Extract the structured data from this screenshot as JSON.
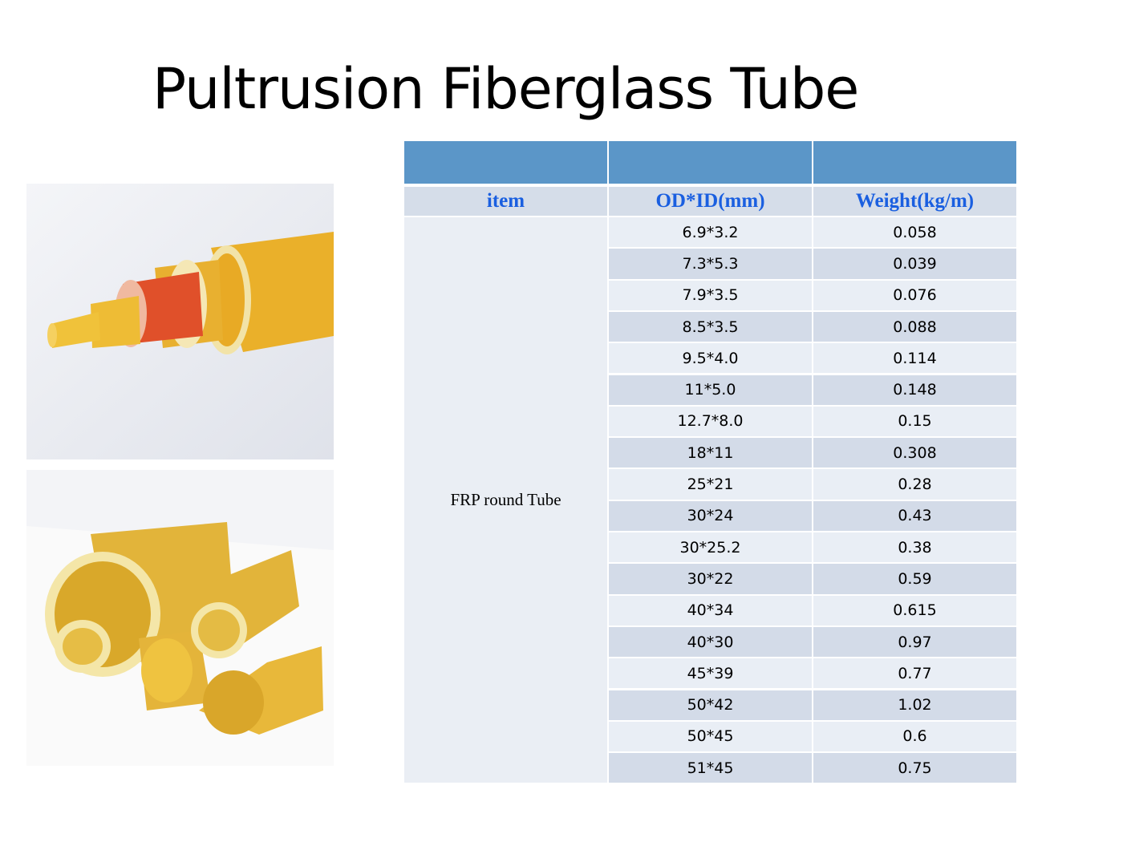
{
  "header": {
    "title": "Pultrusion Fiberglass Tube"
  },
  "table": {
    "columns": [
      "item",
      "OD*ID(mm)",
      "Weight(kg/m)"
    ],
    "item": "FRP round Tube",
    "rows": [
      [
        "6.9*3.2",
        "0.058"
      ],
      [
        "7.3*5.3",
        "0.039"
      ],
      [
        "7.9*3.5",
        "0.076"
      ],
      [
        "8.5*3.5",
        "0.088"
      ],
      [
        "9.5*4.0",
        "0.114"
      ],
      [
        "11*5.0",
        "0.148"
      ],
      [
        "12.7*8.0",
        "0.15"
      ],
      [
        "18*11",
        "0.308"
      ],
      [
        "25*21",
        "0.28"
      ],
      [
        "30*24",
        "0.43"
      ],
      [
        "30*25.2",
        "0.38"
      ],
      [
        "30*22",
        "0.59"
      ],
      [
        "40*34",
        "0.615"
      ],
      [
        "40*30",
        "0.97"
      ],
      [
        "45*39",
        "0.77"
      ],
      [
        "50*42",
        "1.02"
      ],
      [
        "50*45",
        "0.6"
      ],
      [
        "51*45",
        "0.75"
      ]
    ]
  }
}
